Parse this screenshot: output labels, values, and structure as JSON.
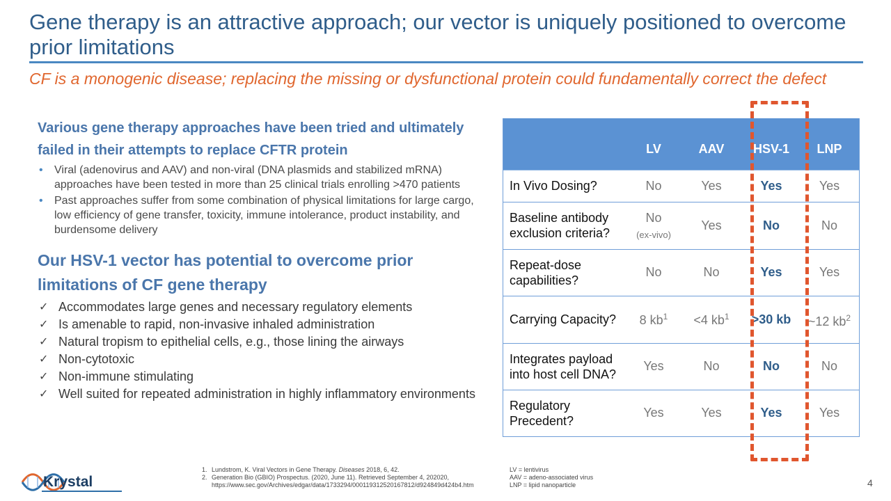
{
  "slide": {
    "title": "Gene therapy is an attractive approach; our vector is uniquely positioned to overcome prior limitations",
    "subtitle": "CF is a monogenic disease; replacing the missing or dysfunctional protein could fundamentally correct the defect",
    "page_number": "4"
  },
  "left": {
    "heading1": "Various gene therapy approaches have been tried and ultimately failed in their attempts to replace CFTR protein",
    "bullet_marker": "•",
    "bullets": [
      "Viral (adenovirus and AAV) and non-viral (DNA plasmids and stabilized mRNA) approaches have been tested in more than 25 clinical trials enrolling >470 patients",
      "Past approaches suffer from some combination of physical limitations for large cargo, low efficiency of gene transfer, toxicity, immune intolerance, product instability, and burdensome delivery"
    ],
    "heading2": "Our HSV-1 vector has potential to overcome prior limitations of CF gene therapy",
    "check_marker": "✓",
    "checks": [
      "Accommodates large genes and necessary regulatory elements",
      "Is amenable to rapid, non-invasive inhaled administration",
      "Natural tropism to epithelial cells, e.g., those lining the airways",
      "Non-cytotoxic",
      "Non-immune stimulating",
      "Well suited for repeated administration in highly inflammatory environments"
    ]
  },
  "table": {
    "headers": [
      "",
      "LV",
      "AAV",
      "HSV-1",
      "LNP"
    ],
    "rows": [
      {
        "label": "In Vivo Dosing?",
        "lv": "No",
        "aav": "Yes",
        "hsv": "Yes",
        "lnp": "Yes"
      },
      {
        "label": "Baseline antibody exclusion criteria?",
        "lv": "No",
        "lv_note": "(ex-vivo)",
        "aav": "Yes",
        "hsv": "No",
        "lnp": "No"
      },
      {
        "label": "Repeat-dose capabilities?",
        "lv": "No",
        "aav": "No",
        "hsv": "Yes",
        "lnp": "Yes"
      },
      {
        "label": "Carrying Capacity?",
        "lv": "8 kb",
        "lv_sup": "1",
        "aav": "<4 kb",
        "aav_sup": "1",
        "hsv": ">30 kb",
        "lnp": "~12 kb",
        "lnp_sup": "2"
      },
      {
        "label": "Integrates payload into host cell DNA?",
        "lv": "Yes",
        "aav": "No",
        "hsv": "No",
        "lnp": "No"
      },
      {
        "label": "Regulatory Precedent?",
        "lv": "Yes",
        "aav": "Yes",
        "hsv": "Yes",
        "lnp": "Yes"
      }
    ],
    "highlight_color": "#e0562e"
  },
  "footnotes": [
    {
      "num": "1.",
      "text_a": "Lundstrom, K. Viral Vectors in Gene Therapy. ",
      "journal": "Diseases",
      "text_b": " 2018, 6, 42."
    },
    {
      "num": "2.",
      "text_a": "Generation Bio (GBIO) Prospectus. (2020, June 11). Retrieved September 4, 202020, https://www.sec.gov/Archives/edgar/data/1733294/000119312520167812/d924849d424b4.htm",
      "journal": "",
      "text_b": ""
    }
  ],
  "abbreviations": [
    "LV = lentivirus",
    "AAV = adeno-associated virus",
    "LNP = lipid nanoparticle"
  ],
  "logo": {
    "text": "Krystal",
    "icon": "dna-helix-icon"
  },
  "colors": {
    "title": "#2f5d8a",
    "accent_orange": "#e0662e",
    "table_header": "#5b92d3",
    "heading_blue": "#4a76ab"
  }
}
